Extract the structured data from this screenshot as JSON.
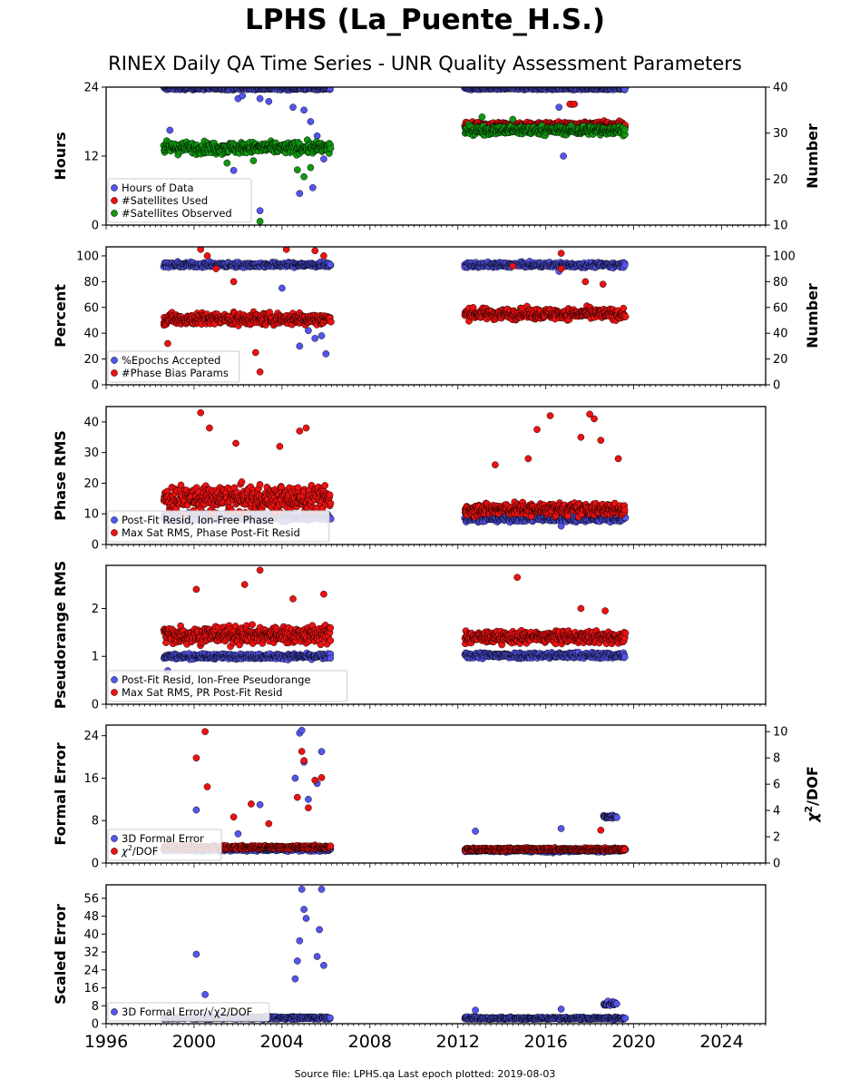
{
  "header": {
    "title": "LPHS (La_Puente_H.S.)",
    "subtitle": "RINEX Daily QA Time Series - UNR Quality Assessment Parameters"
  },
  "footer": {
    "text": "Source file: LPHS.qa Last epoch plotted: 2019-08-03"
  },
  "colors": {
    "blue": "#5555ee",
    "red": "#ee1111",
    "green": "#119911",
    "edge": "#000000"
  },
  "chart_data": [
    {
      "type": "scatter",
      "id": "hours",
      "ylabel": "Hours",
      "ylim": [
        0,
        24
      ],
      "yticks": [
        0,
        12,
        24
      ],
      "y2label": "Number",
      "y2lim": [
        10,
        40
      ],
      "y2ticks": [
        10,
        20,
        30,
        40
      ],
      "legend_position": "lower-left",
      "legend": [
        "Hours of Data",
        "#Satellites Used",
        "#Satellites Observed"
      ],
      "xlim": [
        1996,
        2026
      ],
      "series": [
        {
          "name": "Hours of Data",
          "color": "blue",
          "axis": "left",
          "segments": [
            [
              1998.6,
              2006.2,
              23.8,
              0.25
            ],
            [
              2012.3,
              2019.6,
              23.8,
              0.25
            ]
          ],
          "outliers": [
            [
              2002.0,
              22.0
            ],
            [
              2003.0,
              22.0
            ],
            [
              2003.4,
              21.5
            ],
            [
              2004.5,
              20.5
            ],
            [
              2005.0,
              20.0
            ],
            [
              2005.3,
              18.0
            ],
            [
              2005.6,
              15.5
            ],
            [
              2005.9,
              11.5
            ],
            [
              2005.4,
              6.5
            ],
            [
              2004.8,
              5.5
            ],
            [
              2003.0,
              2.5
            ],
            [
              2001.8,
              9.5
            ],
            [
              2002.2,
              22.5
            ],
            [
              2016.6,
              20.5
            ],
            [
              2016.8,
              12.0
            ],
            [
              2017.2,
              21.0
            ],
            [
              1998.9,
              16.5
            ]
          ]
        },
        {
          "name": "#Satellites Used",
          "color": "red",
          "axis": "right",
          "segments": [
            [
              2012.3,
              2019.6,
              31.8,
              0.6
            ]
          ],
          "outliers": [
            [
              2017.1,
              36.3
            ],
            [
              2017.3,
              36.3
            ]
          ]
        },
        {
          "name": "#Satellites Observed",
          "color": "green",
          "axis": "right",
          "segments": [
            [
              1998.6,
              2006.2,
              26.8,
              1.2
            ],
            [
              2012.3,
              2019.6,
              30.6,
              0.9
            ]
          ],
          "outliers": [
            [
              2003.0,
              10.8
            ],
            [
              2004.7,
              22.0
            ],
            [
              2005.3,
              22.5
            ],
            [
              2005.0,
              20.5
            ],
            [
              2001.5,
              23.5
            ],
            [
              2002.7,
              24.0
            ],
            [
              2013.1,
              33.5
            ],
            [
              2014.5,
              33.0
            ]
          ]
        }
      ]
    },
    {
      "type": "scatter",
      "id": "percent",
      "ylabel": "Percent",
      "ylim": [
        0,
        107
      ],
      "yticks": [
        0,
        20,
        40,
        60,
        80,
        100
      ],
      "y2label": "Number",
      "y2lim": [
        0,
        107
      ],
      "y2ticks": [
        0,
        20,
        40,
        60,
        80,
        100
      ],
      "legend_position": "lower-left",
      "legend": [
        "%Epochs Accepted",
        "#Phase Bias Params"
      ],
      "xlim": [
        1996,
        2026
      ],
      "series": [
        {
          "name": "%Epochs Accepted",
          "color": "blue",
          "axis": "left",
          "segments": [
            [
              1998.6,
              2006.2,
              93,
              1.8
            ],
            [
              2012.3,
              2019.6,
              93,
              1.8
            ]
          ],
          "outliers": [
            [
              2005.5,
              36
            ],
            [
              2005.8,
              38
            ],
            [
              2006.0,
              24
            ],
            [
              2004.8,
              30
            ],
            [
              2005.2,
              42
            ],
            [
              2004.0,
              75
            ],
            [
              2016.6,
              88
            ]
          ]
        },
        {
          "name": "#Phase Bias Params",
          "color": "red",
          "axis": "right",
          "segments": [
            [
              1998.6,
              2006.2,
              51,
              4.5
            ],
            [
              2012.3,
              2019.6,
              55,
              4.0
            ]
          ],
          "outliers": [
            [
              2000.3,
              105
            ],
            [
              2000.6,
              100
            ],
            [
              2001.0,
              90
            ],
            [
              2002.8,
              25
            ],
            [
              2003.0,
              10
            ],
            [
              2004.2,
              105
            ],
            [
              2005.5,
              104
            ],
            [
              2005.9,
              100
            ],
            [
              1998.8,
              32
            ],
            [
              2001.8,
              80
            ],
            [
              2016.7,
              102
            ],
            [
              2016.7,
              90
            ],
            [
              2014.5,
              92
            ],
            [
              2017.8,
              80
            ],
            [
              2018.6,
              78
            ]
          ]
        }
      ]
    },
    {
      "type": "scatter",
      "id": "phase-rms",
      "ylabel": "Phase RMS",
      "ylim": [
        0,
        45
      ],
      "yticks": [
        0,
        10,
        20,
        30,
        40
      ],
      "legend_position": "lower-left",
      "legend": [
        "Post-Fit Resid, Ion-Free Phase",
        "Max Sat RMS, Phase Post-Fit Resid"
      ],
      "xlim": [
        1996,
        2026
      ],
      "series": [
        {
          "name": "Post-Fit Resid, Ion-Free Phase",
          "color": "blue",
          "axis": "left",
          "segments": [
            [
              1998.6,
              2006.2,
              9,
              1.2
            ],
            [
              2012.3,
              2019.6,
              8.5,
              1.0
            ]
          ],
          "outliers": [
            [
              2016.7,
              6
            ]
          ]
        },
        {
          "name": "Max Sat RMS, Phase Post-Fit Resid",
          "color": "red",
          "axis": "left",
          "segments": [
            [
              1998.6,
              2006.2,
              15,
              4.0
            ],
            [
              2012.3,
              2019.6,
              11.5,
              2.0
            ]
          ],
          "outliers": [
            [
              2000.3,
              43
            ],
            [
              2000.7,
              38
            ],
            [
              2003.9,
              32
            ],
            [
              2004.8,
              37
            ],
            [
              2005.1,
              38
            ],
            [
              2001.9,
              33
            ],
            [
              2015.6,
              37.5
            ],
            [
              2016.2,
              42
            ],
            [
              2018.0,
              42.5
            ],
            [
              2018.2,
              41
            ],
            [
              2018.5,
              34
            ],
            [
              2017.6,
              35
            ],
            [
              2019.3,
              28
            ],
            [
              2013.7,
              26
            ],
            [
              2015.2,
              28
            ]
          ]
        }
      ]
    },
    {
      "type": "scatter",
      "id": "pseudorange-rms",
      "ylabel": "Pseudorange RMS",
      "ylim": [
        0,
        2.9
      ],
      "yticks": [
        0,
        1,
        2
      ],
      "legend_position": "lower-left",
      "legend": [
        "Post-Fit Resid, Ion-Free Pseudorange",
        "Max Sat RMS, PR Post-Fit Resid"
      ],
      "xlim": [
        1996,
        2026
      ],
      "series": [
        {
          "name": "Post-Fit Resid, Ion-Free Pseudorange",
          "color": "blue",
          "axis": "left",
          "segments": [
            [
              1998.6,
              2006.2,
              1.0,
              0.05
            ],
            [
              2012.3,
              2019.6,
              1.02,
              0.06
            ]
          ],
          "outliers": [
            [
              1998.8,
              0.7
            ],
            [
              2006.1,
              1.3
            ]
          ]
        },
        {
          "name": "Max Sat RMS, PR Post-Fit Resid",
          "color": "red",
          "axis": "left",
          "segments": [
            [
              1998.6,
              2006.2,
              1.45,
              0.18
            ],
            [
              2012.3,
              2019.6,
              1.4,
              0.12
            ]
          ],
          "outliers": [
            [
              2003.0,
              2.8
            ],
            [
              2002.3,
              2.5
            ],
            [
              2000.1,
              2.4
            ],
            [
              2004.5,
              2.2
            ],
            [
              2014.7,
              2.65
            ],
            [
              2017.6,
              2.0
            ],
            [
              2018.7,
              1.95
            ],
            [
              2005.9,
              2.3
            ]
          ]
        }
      ]
    },
    {
      "type": "scatter",
      "id": "formal-error",
      "ylabel": "Formal Error",
      "ylim": [
        0,
        26
      ],
      "yticks": [
        0,
        8,
        16,
        24
      ],
      "y2label_prefix": "χ",
      "y2label_sup": "2",
      "y2label_suffix": "/DOF",
      "y2lim": [
        0,
        10.5
      ],
      "y2ticks": [
        0,
        2,
        4,
        6,
        8,
        10
      ],
      "legend_position": "lower-left",
      "legend_prefix": "χ",
      "legend_sup": "2",
      "legend_suffix": "/DOF",
      "legend": [
        "3D Formal Error",
        "χ2/DOF"
      ],
      "xlim": [
        1996,
        2026
      ],
      "series": [
        {
          "name": "3D Formal Error",
          "color": "blue",
          "axis": "left",
          "segments": [
            [
              1998.6,
              2006.2,
              2.6,
              0.35
            ],
            [
              2012.3,
              2019.6,
              2.4,
              0.3
            ],
            [
              2018.6,
              2019.2,
              8.7,
              0.3
            ]
          ],
          "outliers": [
            [
              2004.8,
              24.5
            ],
            [
              2004.9,
              25
            ],
            [
              2005.8,
              21
            ],
            [
              2005.6,
              15
            ],
            [
              2005.2,
              12
            ],
            [
              2003.0,
              11
            ],
            [
              2000.1,
              10
            ],
            [
              2002.0,
              5.5
            ],
            [
              2012.8,
              6
            ],
            [
              2016.7,
              6.5
            ],
            [
              2004.6,
              16
            ],
            [
              2005.0,
              19
            ]
          ]
        },
        {
          "name": "χ2/DOF",
          "color": "red",
          "axis": "right",
          "segments": [
            [
              1998.6,
              2006.2,
              1.2,
              0.12
            ],
            [
              2012.3,
              2019.6,
              1.05,
              0.1
            ]
          ],
          "outliers": [
            [
              2000.5,
              10.0
            ],
            [
              2000.1,
              8.0
            ],
            [
              2000.6,
              5.8
            ],
            [
              2002.6,
              4.5
            ],
            [
              2004.9,
              8.5
            ],
            [
              2005.0,
              7.8
            ],
            [
              2005.5,
              6.3
            ],
            [
              2005.8,
              6.5
            ],
            [
              2004.7,
              5.0
            ],
            [
              2001.8,
              3.5
            ],
            [
              2003.4,
              3.0
            ],
            [
              2018.5,
              2.5
            ],
            [
              2005.2,
              4.2
            ]
          ]
        }
      ]
    },
    {
      "type": "scatter",
      "id": "scaled-error",
      "ylabel": "Scaled Error",
      "ylim": [
        0,
        62
      ],
      "yticks": [
        0,
        8,
        16,
        24,
        32,
        40,
        48,
        56
      ],
      "legend_position": "lower-left",
      "legend": [
        "3D Formal Error/√χ2/DOF"
      ],
      "legend_math": true,
      "xlim": [
        1996,
        2026
      ],
      "xticks": [
        1996,
        2000,
        2004,
        2008,
        2012,
        2016,
        2020,
        2024
      ],
      "series": [
        {
          "name": "3D Formal Error/√χ2/DOF",
          "color": "blue",
          "axis": "left",
          "segments": [
            [
              1998.6,
              2006.2,
              2.6,
              0.6
            ],
            [
              2012.3,
              2019.6,
              2.4,
              0.5
            ],
            [
              2018.6,
              2019.2,
              9.0,
              1.2
            ]
          ],
          "outliers": [
            [
              2000.1,
              31
            ],
            [
              2000.5,
              13
            ],
            [
              2004.9,
              60
            ],
            [
              2005.0,
              51
            ],
            [
              2005.1,
              47
            ],
            [
              2004.8,
              37
            ],
            [
              2005.8,
              60
            ],
            [
              2005.7,
              42
            ],
            [
              2005.6,
              30
            ],
            [
              2005.9,
              26
            ],
            [
              2004.6,
              20
            ],
            [
              2004.7,
              28
            ],
            [
              2016.7,
              6.5
            ],
            [
              2012.8,
              6
            ]
          ]
        }
      ]
    }
  ]
}
